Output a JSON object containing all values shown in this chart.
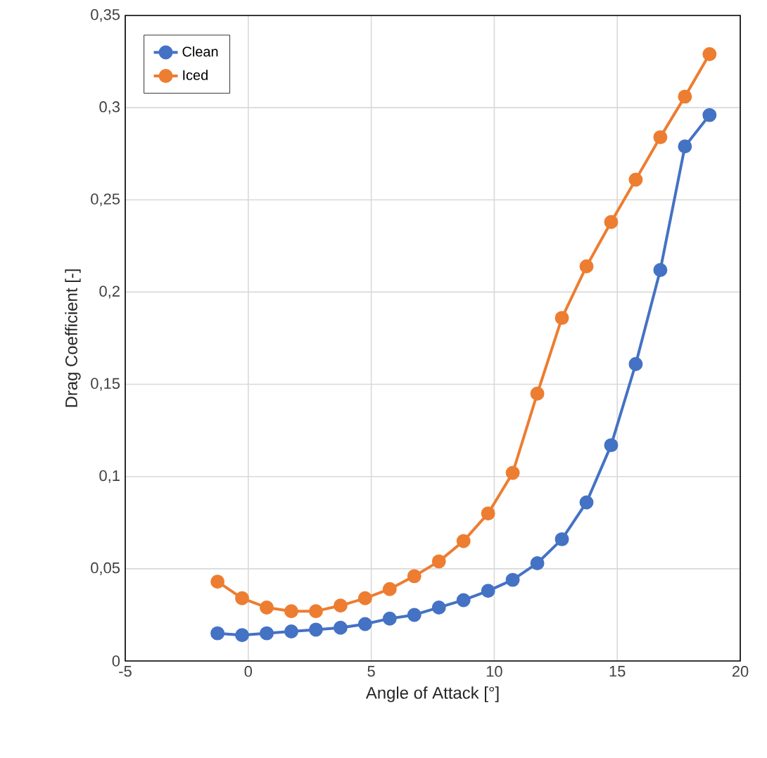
{
  "chart_data": {
    "type": "line",
    "xlabel": "Angle of Attack [°]",
    "ylabel": "Drag Coefficient [-]",
    "x": [
      -1.25,
      -0.25,
      0.75,
      1.75,
      2.75,
      3.75,
      4.75,
      5.75,
      6.75,
      7.75,
      8.75,
      9.75,
      10.75,
      11.75,
      12.75,
      13.75,
      14.75,
      15.75,
      16.75,
      17.75,
      18.75
    ],
    "series": [
      {
        "name": "Clean",
        "color": "#4472c4",
        "values": [
          0.015,
          0.014,
          0.015,
          0.016,
          0.017,
          0.018,
          0.02,
          0.023,
          0.025,
          0.029,
          0.033,
          0.038,
          0.044,
          0.053,
          0.066,
          0.086,
          0.117,
          0.161,
          0.212,
          0.279,
          0.296
        ]
      },
      {
        "name": "Iced",
        "color": "#ed7d31",
        "values": [
          0.043,
          0.034,
          0.029,
          0.027,
          0.027,
          0.03,
          0.034,
          0.039,
          0.046,
          0.054,
          0.065,
          0.08,
          0.102,
          0.145,
          0.186,
          0.214,
          0.238,
          0.261,
          0.284,
          0.306,
          0.329
        ]
      }
    ],
    "xlim": [
      -5,
      20
    ],
    "xticks": [
      -5,
      0,
      5,
      10,
      15,
      20
    ],
    "ylim": [
      0,
      0.35
    ],
    "yticks": [
      0,
      {
        "value": 0.05,
        "label": "0,05"
      },
      {
        "value": 0.1,
        "label": "0,1"
      },
      {
        "value": 0.15,
        "label": "0,15"
      },
      {
        "value": 0.2,
        "label": "0,2"
      },
      {
        "value": 0.25,
        "label": "0,25"
      },
      {
        "value": 0.3,
        "label": "0,3"
      },
      {
        "value": 0.35,
        "label": "0,35"
      }
    ],
    "grid": true,
    "legend": "top left",
    "marker": "circle",
    "line_style": "solid"
  }
}
